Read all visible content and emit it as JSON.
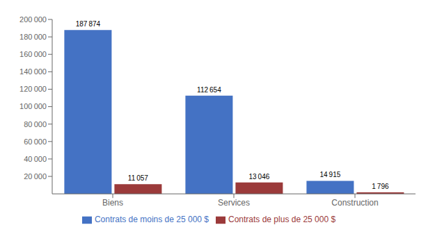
{
  "chart_data": {
    "type": "bar",
    "categories": [
      "Biens",
      "Services",
      "Construction"
    ],
    "series": [
      {
        "name": "Contrats de moins de 25 000 $",
        "color": "#4472C4",
        "values": [
          187874,
          112654,
          14915
        ],
        "value_labels": [
          "187 874",
          "112 654",
          "14 915"
        ]
      },
      {
        "name": "Contrats de plus de 25 000 $",
        "color": "#9B3A3A",
        "values": [
          11057,
          13046,
          1796
        ],
        "value_labels": [
          "11 057",
          "13 046",
          "1 796"
        ]
      }
    ],
    "ylim": [
      0,
      200000
    ],
    "yticks": [
      {
        "value": 20000,
        "label": "20 000"
      },
      {
        "value": 40000,
        "label": "40 000"
      },
      {
        "value": 60000,
        "label": "60 000"
      },
      {
        "value": 80000,
        "label": "80 000"
      },
      {
        "value": 100000,
        "label": "100 000"
      },
      {
        "value": 120000,
        "label": "120 000"
      },
      {
        "value": 140000,
        "label": "140 000"
      },
      {
        "value": 160000,
        "label": "160 000"
      },
      {
        "value": 180000,
        "label": "180 000"
      },
      {
        "value": 200000,
        "label": "200 000"
      }
    ],
    "data_labels": true,
    "grid": false,
    "legend": "bottom"
  }
}
